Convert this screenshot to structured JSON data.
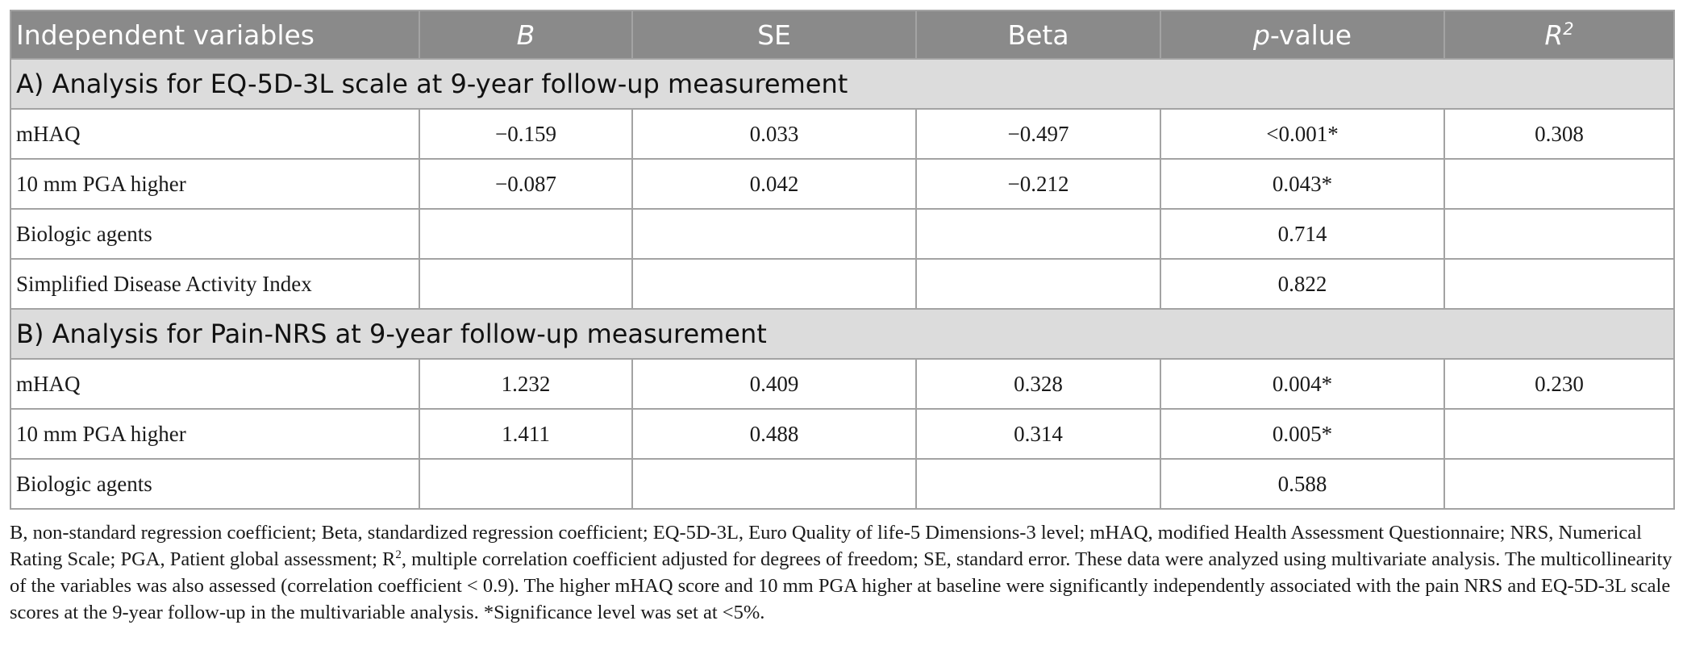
{
  "table": {
    "headers": {
      "variables": "Independent variables",
      "b": "B",
      "se": "SE",
      "beta": "Beta",
      "pvalue_p": "p",
      "pvalue_rest": "-value",
      "r2_base": "R",
      "r2_sup": "2"
    },
    "sections": [
      {
        "title": "A) Analysis for EQ-5D-3L scale at 9-year follow-up measurement",
        "rows": [
          {
            "variable": "mHAQ",
            "b": "−0.159",
            "se": "0.033",
            "beta": "−0.497",
            "p": "<0.001*",
            "r2": "0.308"
          },
          {
            "variable": "10 mm PGA higher",
            "b": "−0.087",
            "se": "0.042",
            "beta": "−0.212",
            "p": "0.043*",
            "r2": ""
          },
          {
            "variable": "Biologic agents",
            "b": "",
            "se": "",
            "beta": "",
            "p": "0.714",
            "r2": ""
          },
          {
            "variable": "Simplified Disease Activity Index",
            "b": "",
            "se": "",
            "beta": "",
            "p": "0.822",
            "r2": ""
          }
        ]
      },
      {
        "title": "B) Analysis for Pain-NRS at 9-year follow-up measurement",
        "rows": [
          {
            "variable": "mHAQ",
            "b": "1.232",
            "se": "0.409",
            "beta": "0.328",
            "p": "0.004*",
            "r2": "0.230"
          },
          {
            "variable": "10 mm PGA higher",
            "b": "1.411",
            "se": "0.488",
            "beta": "0.314",
            "p": "0.005*",
            "r2": ""
          },
          {
            "variable": "Biologic agents",
            "b": "",
            "se": "",
            "beta": "",
            "p": "0.588",
            "r2": ""
          }
        ]
      }
    ]
  },
  "footnote": {
    "part1": "B, non-standard regression coefficient; Beta, standardized regression coefficient; EQ-5D-3L, Euro Quality of life-5 Dimensions-3 level; mHAQ, modified Health Assessment Questionnaire; NRS, Numerical Rating Scale; PGA, Patient global assessment; R",
    "sup": "2",
    "part2": ", multiple correlation coefficient adjusted for degrees of freedom; SE, standard error. These data were analyzed using multivariate analysis. The multicollinearity of the variables was also assessed (correlation coefficient < 0.9). The higher mHAQ score and 10 mm PGA higher at baseline were significantly independently associated with the pain NRS and EQ-5D-3L scale scores at the 9-year follow-up in the multivariable analysis. *Significance level was set at <5%."
  }
}
